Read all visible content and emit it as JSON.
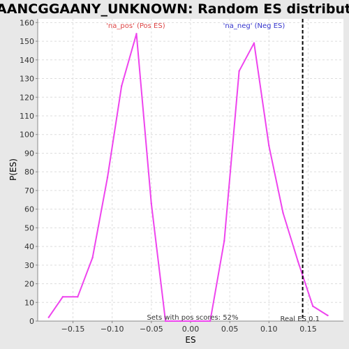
{
  "chart_data": {
    "type": "line",
    "title": "GGAANCGGAANY_UNKNOWN: Random ES distribution",
    "xlabel": "ES",
    "ylabel": "P(ES)",
    "xlim": [
      -0.195,
      0.195
    ],
    "ylim": [
      0,
      162
    ],
    "x_ticks": [
      -0.15,
      -0.1,
      -0.05,
      0.0,
      0.05,
      0.1,
      0.15
    ],
    "x_tick_labels": [
      "−0.15",
      "−0.10",
      "−0.05",
      "0.00",
      "0.05",
      "0.10",
      "0.15"
    ],
    "y_ticks": [
      0,
      10,
      20,
      30,
      40,
      50,
      60,
      70,
      80,
      90,
      100,
      110,
      120,
      130,
      140,
      150,
      160
    ],
    "grid": true,
    "series": [
      {
        "color": "#ee44ee",
        "x": [
          -0.181,
          -0.163,
          -0.144,
          -0.125,
          -0.106,
          -0.088,
          -0.069,
          -0.05,
          -0.032,
          -0.013,
          0.006,
          0.025,
          0.043,
          0.062,
          0.081,
          0.1,
          0.118,
          0.137,
          0.156,
          0.175
        ],
        "y": [
          2,
          13,
          13,
          34,
          77,
          126,
          154,
          63,
          0,
          0,
          0,
          0,
          43,
          134,
          149,
          94,
          58,
          32,
          8,
          3
        ]
      }
    ],
    "annotations": {
      "pos_label": "'na_pos' (Pos ES)",
      "neg_label": "'na_neg' (Neg ES)",
      "pos_color": "#dd4444",
      "neg_color": "#3333cc",
      "bottom_text": "Sets with pos scores: 52%",
      "real_es_label": "Real ES 0.1",
      "real_es_value": 0.143
    }
  }
}
